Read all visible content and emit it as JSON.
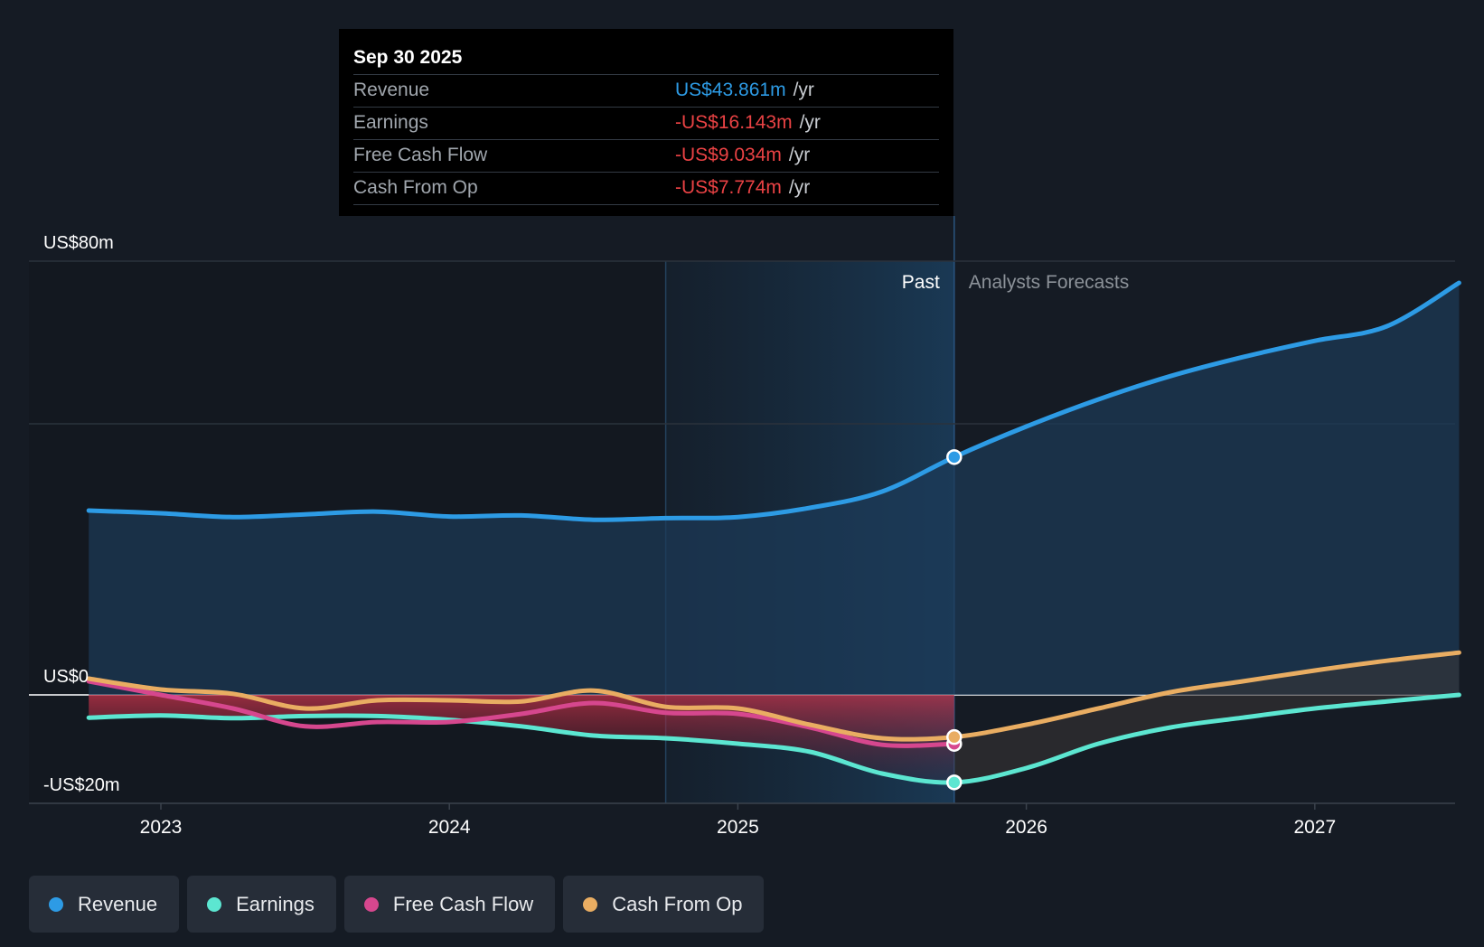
{
  "tooltip": {
    "date": "Sep 30 2025",
    "unit": "/yr",
    "rows": [
      {
        "label": "Revenue",
        "value": "US$43.861m",
        "color": "#2d9be5"
      },
      {
        "label": "Earnings",
        "value": "-US$16.143m",
        "color": "#e94244"
      },
      {
        "label": "Free Cash Flow",
        "value": "-US$9.034m",
        "color": "#e94244"
      },
      {
        "label": "Cash From Op",
        "value": "-US$7.774m",
        "color": "#e94244"
      }
    ]
  },
  "legend": [
    {
      "label": "Revenue",
      "color": "#2d9be5"
    },
    {
      "label": "Earnings",
      "color": "#5ce6d1"
    },
    {
      "label": "Free Cash Flow",
      "color": "#d6478e"
    },
    {
      "label": "Cash From Op",
      "color": "#e9ad62"
    }
  ],
  "chart_data": {
    "type": "line",
    "title": "",
    "xlabel": "",
    "ylabel": "",
    "xlim": [
      2022.53,
      2027.5
    ],
    "ylim": [
      -20,
      80
    ],
    "y_ticks": [
      {
        "value": 80,
        "label": "US$80m"
      },
      {
        "value": 0,
        "label": "US$0"
      },
      {
        "value": -20,
        "label": "-US$20m"
      }
    ],
    "gridline_values": [
      80,
      50,
      0
    ],
    "x_ticks": [
      {
        "value": 2023,
        "label": "2023"
      },
      {
        "value": 2024,
        "label": "2024"
      },
      {
        "value": 2025,
        "label": "2025"
      },
      {
        "value": 2026,
        "label": "2026"
      },
      {
        "value": 2027,
        "label": "2027"
      }
    ],
    "past_label": "Past",
    "forecast_label": "Analysts Forecasts",
    "divider_x": 2025.75,
    "highlight_start_x": 2024.75,
    "series": [
      {
        "name": "Revenue",
        "color": "#2d9be5",
        "x": [
          2022.75,
          2023.0,
          2023.25,
          2023.5,
          2023.75,
          2024.0,
          2024.25,
          2024.5,
          2024.75,
          2025.0,
          2025.25,
          2025.5,
          2025.75,
          2026.0,
          2026.25,
          2026.5,
          2026.75,
          2027.0,
          2027.25,
          2027.5
        ],
        "values": [
          34.0,
          33.5,
          32.8,
          33.3,
          33.8,
          32.9,
          33.1,
          32.3,
          32.6,
          32.8,
          34.5,
          37.5,
          43.861,
          49.5,
          54.5,
          58.8,
          62.3,
          65.3,
          68.0,
          76.0
        ]
      },
      {
        "name": "Earnings",
        "color": "#5ce6d1",
        "x": [
          2022.75,
          2023.0,
          2023.25,
          2023.5,
          2023.75,
          2024.0,
          2024.25,
          2024.5,
          2024.75,
          2025.0,
          2025.25,
          2025.5,
          2025.75,
          2026.0,
          2026.25,
          2026.5,
          2026.75,
          2027.0,
          2027.25,
          2027.5
        ],
        "values": [
          -4.2,
          -3.8,
          -4.3,
          -3.9,
          -3.9,
          -4.6,
          -5.8,
          -7.5,
          -8.0,
          -9.0,
          -10.5,
          -14.5,
          -16.143,
          -13.5,
          -9.0,
          -6.0,
          -4.2,
          -2.5,
          -1.2,
          0.0
        ]
      },
      {
        "name": "Free Cash Flow",
        "color": "#d6478e",
        "x": [
          2022.75,
          2023.0,
          2023.25,
          2023.5,
          2023.75,
          2024.0,
          2024.25,
          2024.5,
          2024.75,
          2025.0,
          2025.25,
          2025.5,
          2025.75
        ],
        "values": [
          2.5,
          0.0,
          -2.5,
          -5.8,
          -5.0,
          -5.0,
          -3.5,
          -1.5,
          -3.3,
          -3.5,
          -6.0,
          -9.2,
          -9.034
        ]
      },
      {
        "name": "Cash From Op",
        "color": "#e9ad62",
        "x": [
          2022.75,
          2023.0,
          2023.25,
          2023.5,
          2023.75,
          2024.0,
          2024.25,
          2024.5,
          2024.75,
          2025.0,
          2025.25,
          2025.5,
          2025.75,
          2026.0,
          2026.25,
          2026.5,
          2026.75,
          2027.0,
          2027.25,
          2027.5
        ],
        "values": [
          3.0,
          1.0,
          0.2,
          -2.5,
          -1.0,
          -1.0,
          -1.2,
          0.8,
          -2.2,
          -2.5,
          -5.5,
          -8.0,
          -7.774,
          -5.5,
          -2.5,
          0.5,
          2.5,
          4.5,
          6.3,
          7.8
        ]
      }
    ]
  }
}
